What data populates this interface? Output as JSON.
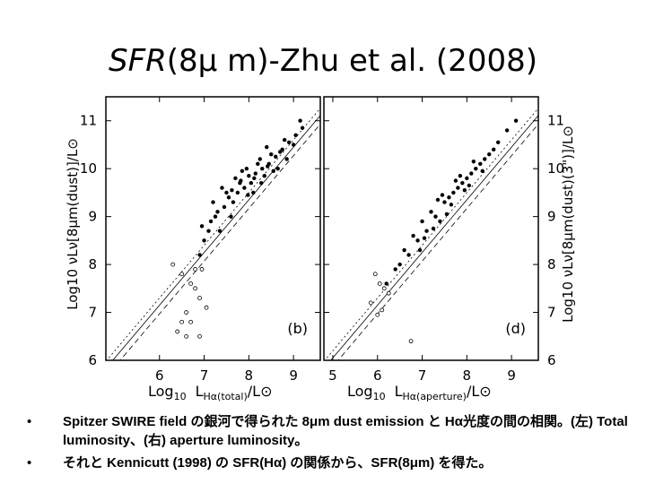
{
  "title": {
    "italic": "SFR",
    "rest": "(8μ m)-Zhu et al. (2008)"
  },
  "chart_data": [
    {
      "type": "scatter",
      "panel_label": "(b)",
      "xlabel_main": "Log",
      "xlabel_sub": "10",
      "xlabel_tail": "L",
      "xlabel_tail_sub": "Hα(total)",
      "xlabel_end": "/L⊙",
      "ylabel": "Log10 νLν[8μm(dust)]/L⊙",
      "xlim": [
        4.8,
        9.6
      ],
      "ylim": [
        6.0,
        11.5
      ],
      "xticks": [
        "6",
        "7",
        "8",
        "9"
      ],
      "yticks": [
        "6",
        "7",
        "8",
        "9",
        "10",
        "11"
      ],
      "series": [
        {
          "marker": "filled",
          "values": [
            [
              7.62,
              9.55
            ],
            [
              7.45,
              9.2
            ],
            [
              7.8,
              9.7
            ],
            [
              8.0,
              9.85
            ],
            [
              8.15,
              9.9
            ],
            [
              7.9,
              9.6
            ],
            [
              8.3,
              10.0
            ],
            [
              8.45,
              10.1
            ],
            [
              8.6,
              10.25
            ],
            [
              8.75,
              10.4
            ],
            [
              8.9,
              10.55
            ],
            [
              9.05,
              10.7
            ],
            [
              9.2,
              10.85
            ],
            [
              7.3,
              9.1
            ],
            [
              7.15,
              8.9
            ],
            [
              7.0,
              8.5
            ],
            [
              6.95,
              8.8
            ],
            [
              7.2,
              9.3
            ],
            [
              7.35,
              8.7
            ],
            [
              7.55,
              9.4
            ],
            [
              7.7,
              9.8
            ],
            [
              7.85,
              9.95
            ],
            [
              8.05,
              9.7
            ],
            [
              8.2,
              10.1
            ],
            [
              8.35,
              9.85
            ],
            [
              8.5,
              10.3
            ],
            [
              8.65,
              10.0
            ],
            [
              8.8,
              10.6
            ],
            [
              7.4,
              9.6
            ],
            [
              7.6,
              9.0
            ],
            [
              7.75,
              9.5
            ],
            [
              7.95,
              10.0
            ],
            [
              8.1,
              9.5
            ],
            [
              8.25,
              10.2
            ],
            [
              8.4,
              10.45
            ],
            [
              8.55,
              9.95
            ],
            [
              8.7,
              10.35
            ],
            [
              8.85,
              10.2
            ],
            [
              9.0,
              10.5
            ],
            [
              9.15,
              11.0
            ],
            [
              7.1,
              8.7
            ],
            [
              6.9,
              8.2
            ],
            [
              7.25,
              9.0
            ],
            [
              7.5,
              9.5
            ],
            [
              7.65,
              9.3
            ],
            [
              7.82,
              9.75
            ],
            [
              7.98,
              9.45
            ],
            [
              8.12,
              9.8
            ],
            [
              8.28,
              9.7
            ],
            [
              8.42,
              10.05
            ]
          ]
        },
        {
          "marker": "open",
          "values": [
            [
              6.3,
              8.0
            ],
            [
              6.5,
              7.8
            ],
            [
              6.7,
              7.6
            ],
            [
              6.8,
              7.9
            ],
            [
              6.9,
              7.3
            ],
            [
              6.6,
              7.0
            ],
            [
              6.7,
              6.8
            ],
            [
              6.5,
              6.8
            ],
            [
              6.4,
              6.6
            ],
            [
              6.6,
              6.5
            ],
            [
              6.9,
              6.5
            ],
            [
              7.05,
              7.1
            ],
            [
              6.8,
              7.5
            ],
            [
              6.95,
              7.9
            ]
          ]
        }
      ],
      "lines": [
        "solid",
        "dashed",
        "dotted"
      ]
    },
    {
      "type": "scatter",
      "panel_label": "(d)",
      "xlabel_main": "Log",
      "xlabel_sub": "10",
      "xlabel_tail": "L",
      "xlabel_tail_sub": "Hα(aperture)",
      "xlabel_end": "/L⊙",
      "ylabel": "Log10 νLν[8μm(dust)(3\")]/L⊙",
      "xlim": [
        4.8,
        9.6
      ],
      "ylim": [
        6.0,
        11.5
      ],
      "xticks": [
        "5",
        "6",
        "7",
        "8",
        "9"
      ],
      "yticks": [
        "6",
        "7",
        "8",
        "9",
        "10",
        "11"
      ],
      "series": [
        {
          "marker": "filled",
          "values": [
            [
              7.3,
              9.0
            ],
            [
              7.5,
              9.3
            ],
            [
              7.7,
              9.5
            ],
            [
              7.9,
              9.7
            ],
            [
              8.1,
              9.9
            ],
            [
              8.3,
              10.1
            ],
            [
              8.5,
              10.3
            ],
            [
              8.7,
              10.55
            ],
            [
              8.9,
              10.8
            ],
            [
              9.1,
              11.0
            ],
            [
              7.1,
              8.7
            ],
            [
              6.9,
              8.5
            ],
            [
              6.7,
              8.2
            ],
            [
              6.5,
              8.0
            ],
            [
              7.2,
              9.1
            ],
            [
              7.4,
              8.9
            ],
            [
              7.6,
              9.4
            ],
            [
              7.8,
              9.6
            ],
            [
              8.0,
              9.8
            ],
            [
              8.2,
              10.0
            ],
            [
              8.4,
              10.2
            ],
            [
              8.6,
              10.4
            ],
            [
              7.0,
              8.9
            ],
            [
              6.8,
              8.6
            ],
            [
              7.35,
              9.35
            ],
            [
              7.55,
              9.05
            ],
            [
              7.75,
              9.75
            ],
            [
              7.95,
              9.55
            ],
            [
              8.15,
              10.15
            ],
            [
              8.35,
              9.95
            ],
            [
              6.6,
              8.3
            ],
            [
              6.4,
              7.9
            ],
            [
              6.2,
              7.6
            ],
            [
              7.05,
              8.55
            ],
            [
              7.25,
              8.75
            ],
            [
              7.45,
              9.45
            ],
            [
              7.65,
              9.25
            ],
            [
              7.85,
              9.85
            ],
            [
              8.05,
              9.65
            ],
            [
              6.95,
              8.3
            ]
          ]
        },
        {
          "marker": "open",
          "values": [
            [
              5.95,
              7.8
            ],
            [
              6.05,
              7.6
            ],
            [
              6.15,
              7.5
            ],
            [
              6.25,
              7.4
            ],
            [
              5.85,
              7.2
            ],
            [
              6.0,
              6.95
            ],
            [
              6.1,
              7.05
            ],
            [
              6.75,
              6.4
            ]
          ]
        }
      ],
      "lines": [
        "solid",
        "dashed",
        "dotted"
      ]
    }
  ],
  "bullets": [
    {
      "mark": "•",
      "text": "Spitzer SWIRE field の銀河で得られた 8μm dust emission と Hα光度の間の相関。(左) Total luminosity、(右) aperture luminosity。"
    },
    {
      "mark": "•",
      "text": "それと Kennicutt (1998) の SFR(Hα) の関係から、SFR(8μm) を得た。"
    }
  ]
}
